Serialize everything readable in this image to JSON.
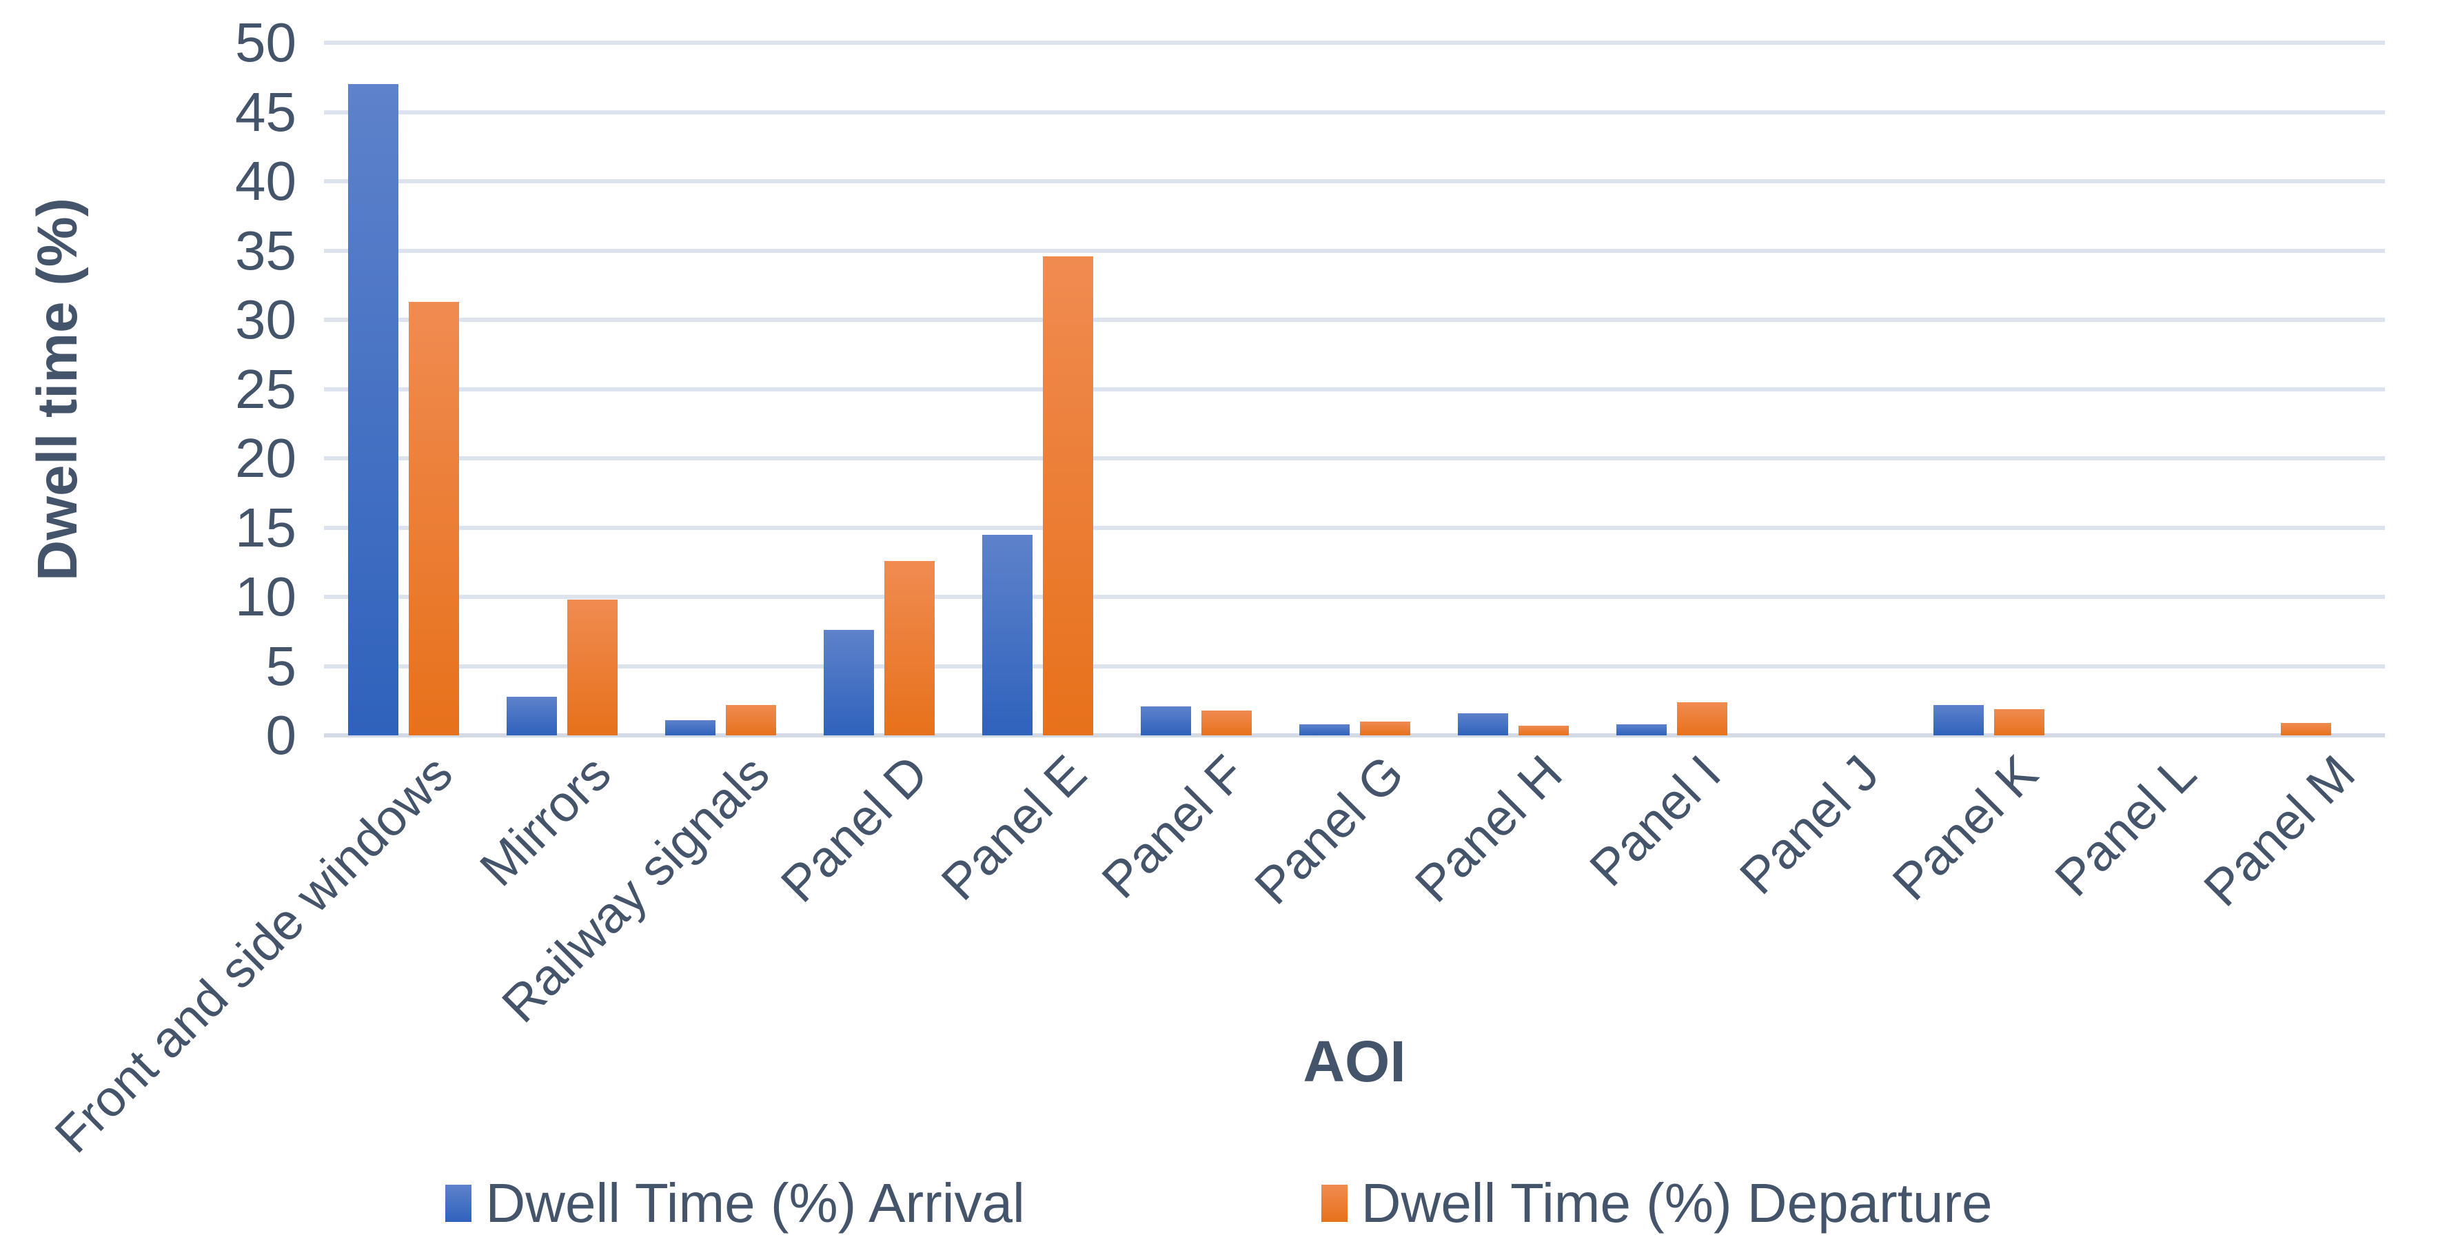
{
  "chart_data": {
    "type": "bar",
    "xlabel": "AOI",
    "ylabel": "Dwell time (%)",
    "categories": [
      "Front and side windows",
      "Mirrors",
      "Railway signals",
      "Panel D",
      "Panel E",
      "Panel F",
      "Panel G",
      "Panel H",
      "Panel I",
      "Panel J",
      "Panel K",
      "Panel L",
      "Panel M"
    ],
    "series": [
      {
        "name": "Dwell Time (%) Arrival",
        "color_top": "#5E82CB",
        "color_bottom": "#2F62BC",
        "values": [
          47.0,
          2.8,
          1.1,
          7.6,
          14.5,
          2.1,
          0.8,
          1.6,
          0.8,
          0,
          2.2,
          0,
          0
        ]
      },
      {
        "name": "Dwell Time (%) Departure",
        "color_top": "#F08B51",
        "color_bottom": "#E7711B",
        "values": [
          31.3,
          9.8,
          2.2,
          12.6,
          34.6,
          1.8,
          1.0,
          0.7,
          2.4,
          0,
          1.9,
          0,
          0.9
        ]
      }
    ],
    "ylim": [
      0,
      50
    ],
    "ytick_step": 5,
    "yticks": [
      "0",
      "5",
      "10",
      "15",
      "20",
      "25",
      "30",
      "35",
      "40",
      "45",
      "50"
    ],
    "grid": true,
    "legend_position": "bottom"
  },
  "colors": {
    "gridline": "#DDE3EC",
    "baseline": "#D3DAE4",
    "text": "#44546A",
    "background": "#FFFFFF"
  }
}
